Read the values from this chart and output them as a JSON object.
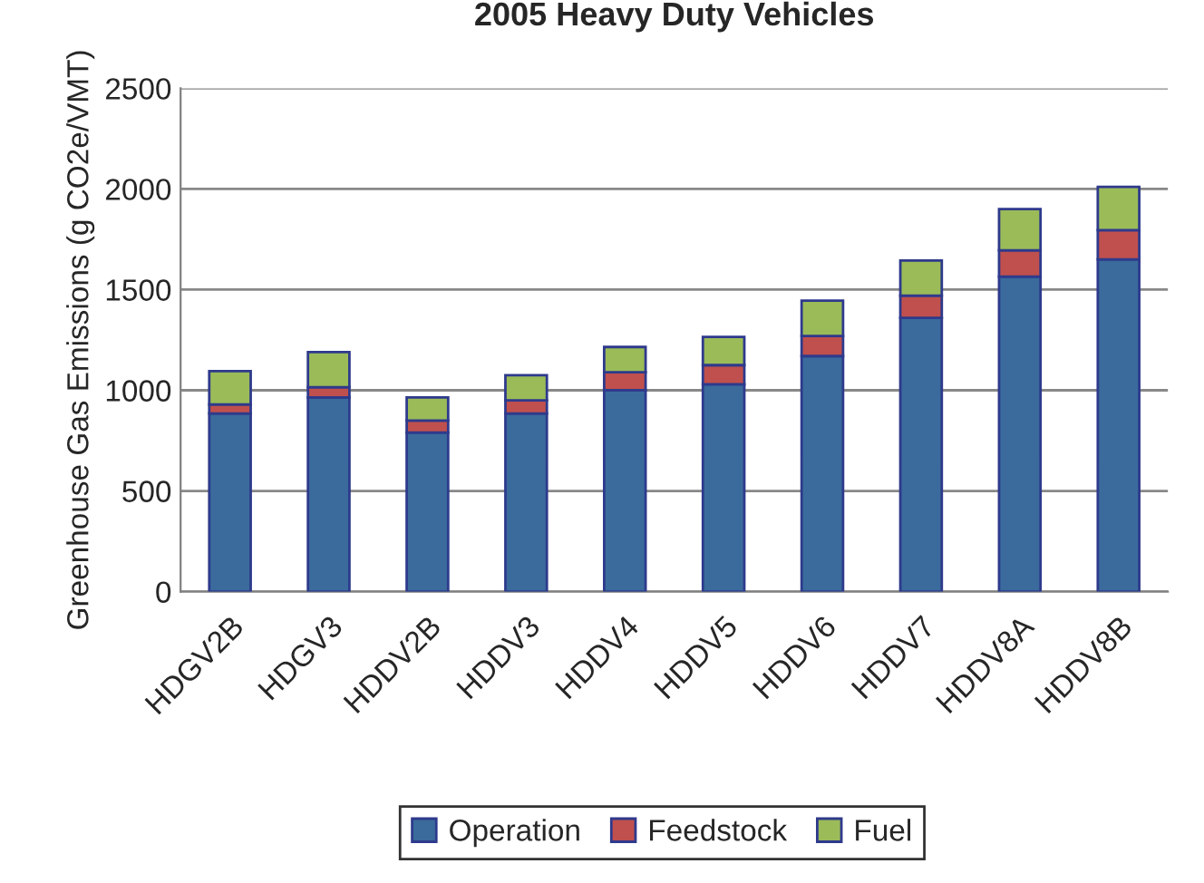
{
  "chart_data": {
    "type": "bar",
    "title": "2005 Heavy Duty Vehicles",
    "ylabel": "Greenhouse Gas Emissions (g CO2e/VMT)",
    "categories": [
      "HDGV2B",
      "HDGV3",
      "HDDV2B",
      "HDDV3",
      "HDDV4",
      "HDDV5",
      "HDDV6",
      "HDDV7",
      "HDDV8A",
      "HDDV8B"
    ],
    "stacked": true,
    "series": [
      {
        "name": "Operation",
        "color": "#3a6b9c",
        "values": [
          885,
          965,
          790,
          885,
          1000,
          1030,
          1170,
          1360,
          1565,
          1650
        ]
      },
      {
        "name": "Feedstock",
        "color": "#c0504d",
        "values": [
          45,
          50,
          60,
          65,
          90,
          95,
          100,
          110,
          130,
          145
        ]
      },
      {
        "name": "Fuel",
        "color": "#9bbb59",
        "values": [
          165,
          175,
          115,
          125,
          125,
          140,
          175,
          175,
          205,
          215
        ]
      }
    ],
    "ylim": [
      0,
      2500
    ],
    "yticks": [
      0,
      500,
      1000,
      1500,
      2000,
      2500
    ],
    "grid": "y",
    "legend": "bottom"
  }
}
